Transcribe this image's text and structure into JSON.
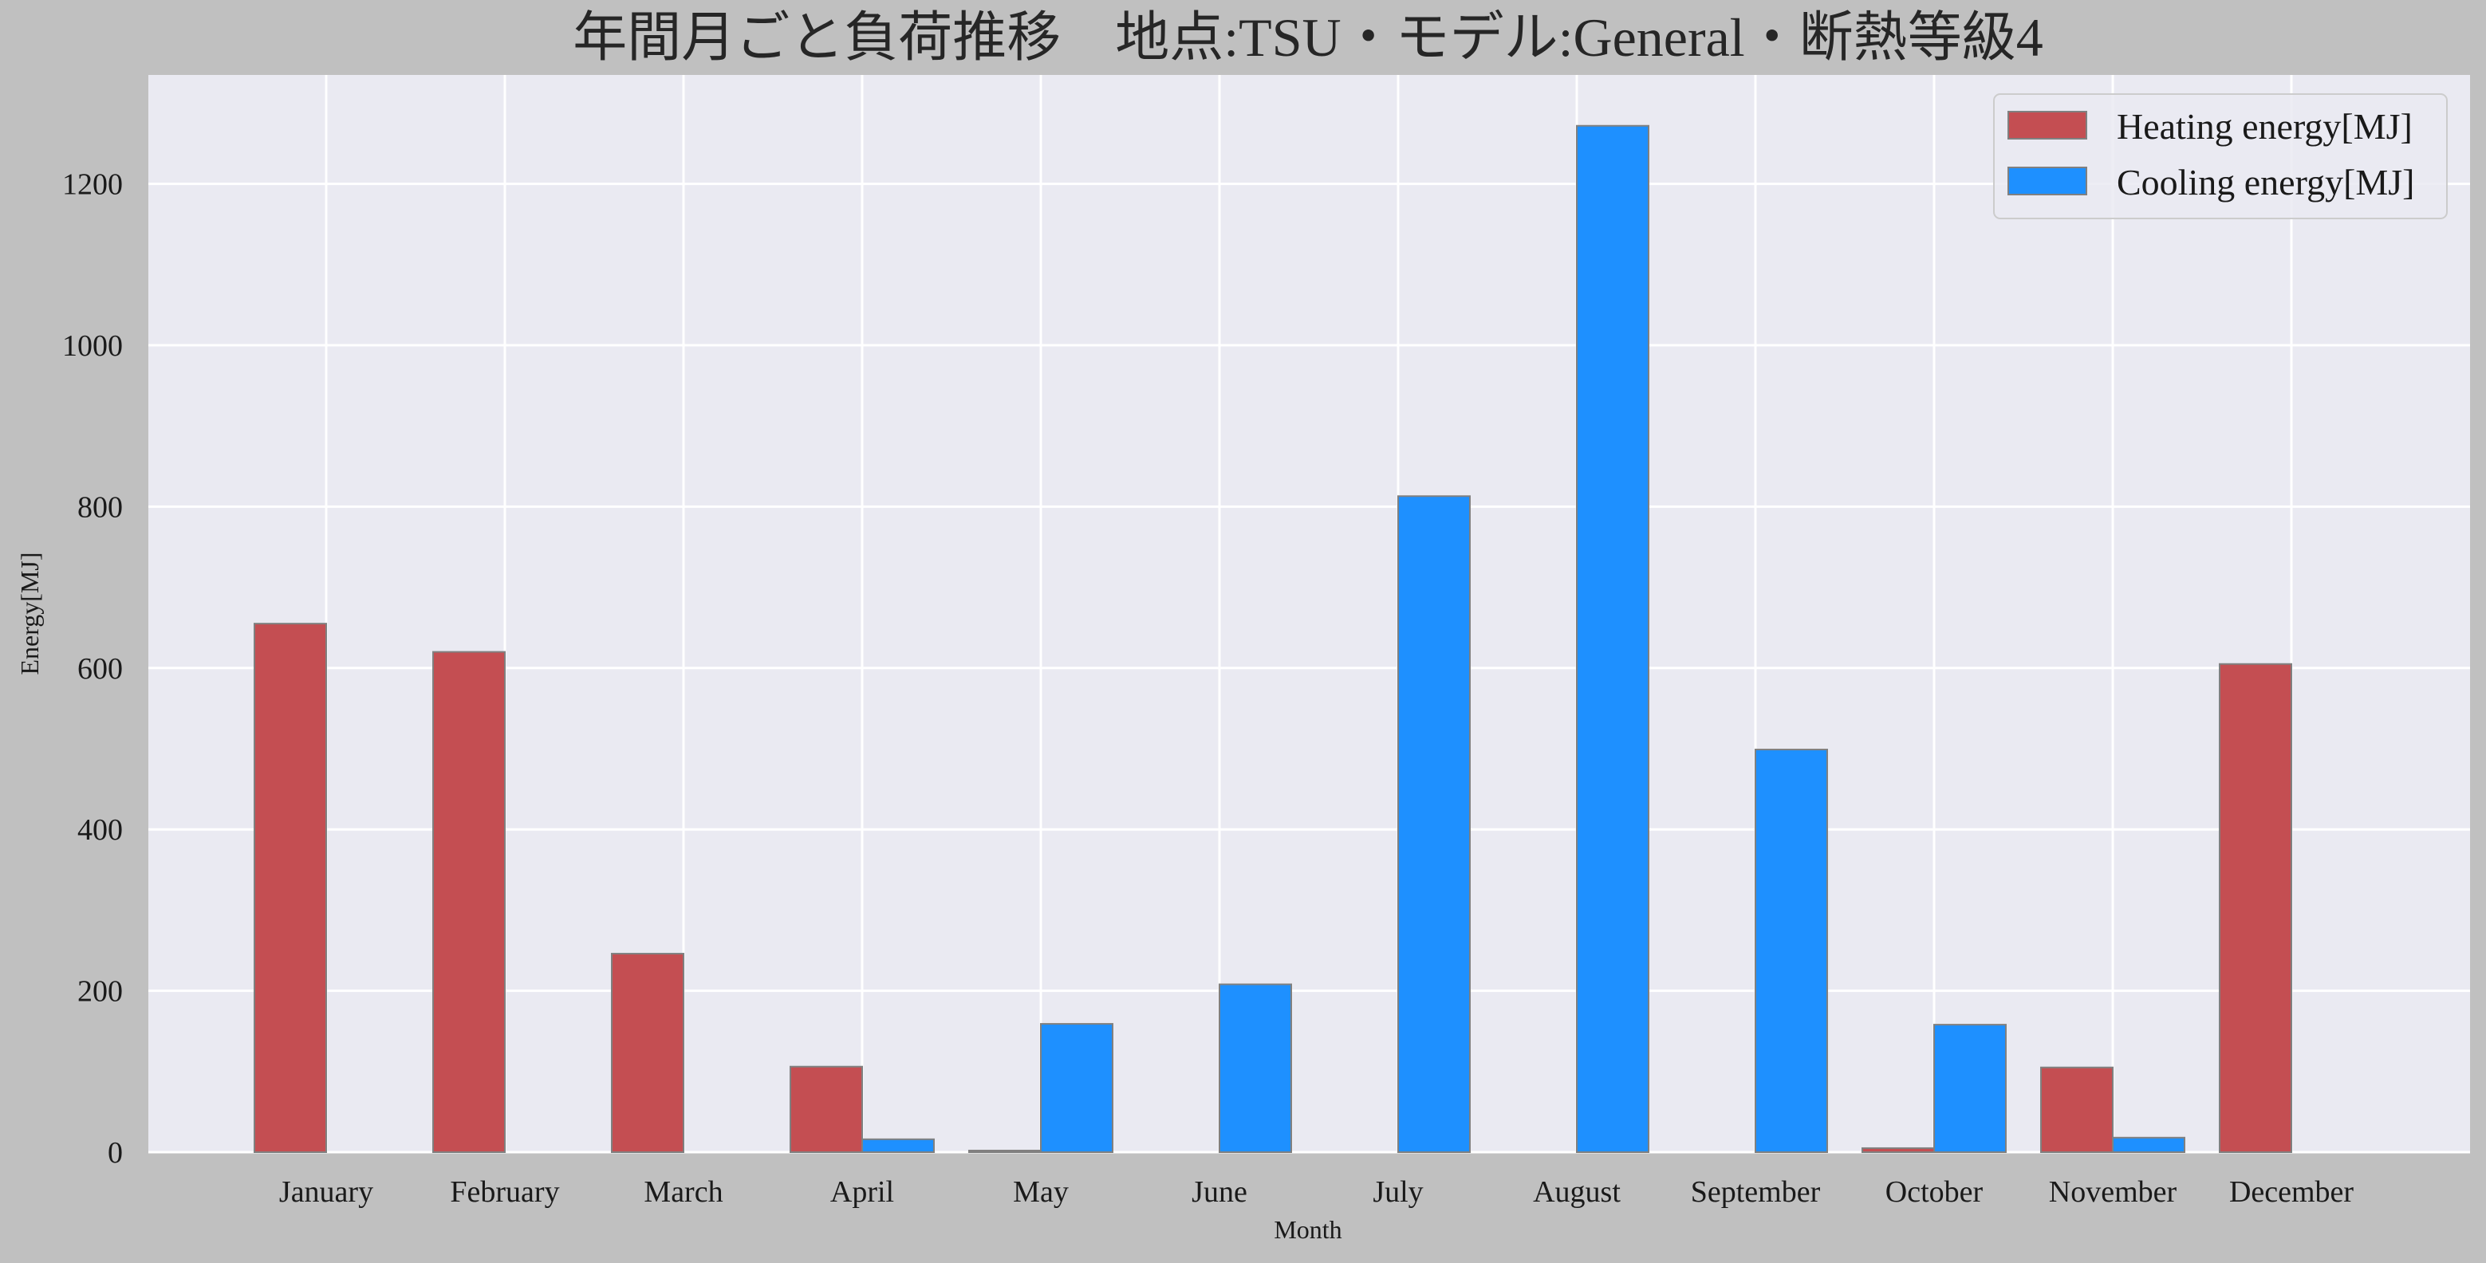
{
  "chart_data": {
    "type": "bar",
    "title": "年間月ごと負荷推移　地点:TSU・モデル:General・断熱等級4",
    "xlabel": "Month",
    "ylabel": "Energy[MJ]",
    "categories": [
      "January",
      "February",
      "March",
      "April",
      "May",
      "June",
      "July",
      "August",
      "September",
      "October",
      "November",
      "December"
    ],
    "series": [
      {
        "name": "Heating energy[MJ]",
        "color": "#c44e52",
        "values": [
          655,
          620,
          246,
          106,
          2,
          0,
          0,
          0,
          0,
          5,
          105,
          605
        ]
      },
      {
        "name": "Cooling energy[MJ]",
        "color": "#1e90ff",
        "values": [
          0,
          0,
          0,
          16,
          159,
          208,
          813,
          1272,
          499,
          158,
          18,
          0
        ]
      }
    ],
    "ylim": [
      0,
      1335
    ],
    "yticks": [
      0,
      200,
      400,
      600,
      800,
      1000,
      1200
    ],
    "legend": "top-right",
    "grid": true
  }
}
